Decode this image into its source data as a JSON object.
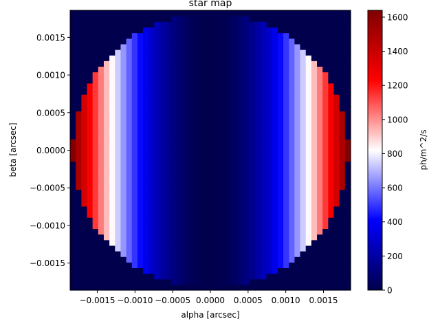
{
  "chart_data": {
    "type": "heatmap",
    "title": "star map",
    "xlabel": "alpha [arcsec]",
    "ylabel": "beta [arcsec]",
    "colorbar_label": "ph/m^2/s",
    "colormap": "seismic",
    "grid": false,
    "xlim": [
      -0.00186,
      0.00186
    ],
    "ylim": [
      -0.00186,
      0.00186
    ],
    "x_ticks": [
      -0.0015,
      -0.001,
      -0.0005,
      0.0,
      0.0005,
      0.001,
      0.0015
    ],
    "x_tick_labels": [
      "−0.0015",
      "−0.0010",
      "−0.0005",
      "0.0000",
      "0.0005",
      "0.0010",
      "0.0015"
    ],
    "y_ticks": [
      -0.0015,
      -0.001,
      -0.0005,
      0.0,
      0.0005,
      0.001,
      0.0015
    ],
    "y_tick_labels": [
      "−0.0015",
      "−0.0010",
      "−0.0005",
      "0.0000",
      "0.0005",
      "0.0010",
      "0.0015"
    ],
    "colorbar_range": [
      0,
      1640
    ],
    "colorbar_ticks": [
      0,
      200,
      400,
      600,
      800,
      1000,
      1200,
      1400,
      1600
    ],
    "colorbar_tick_labels": [
      "0",
      "200",
      "400",
      "600",
      "800",
      "1000",
      "1200",
      "1400",
      "1600"
    ],
    "grid_size": [
      50,
      50
    ],
    "star_radius": 0.00183,
    "intensity_profile": "value = 1640 * (alpha / 0.00183)^2 inside the disk, 0 outside",
    "max_value": 1640,
    "background_value": 0
  }
}
